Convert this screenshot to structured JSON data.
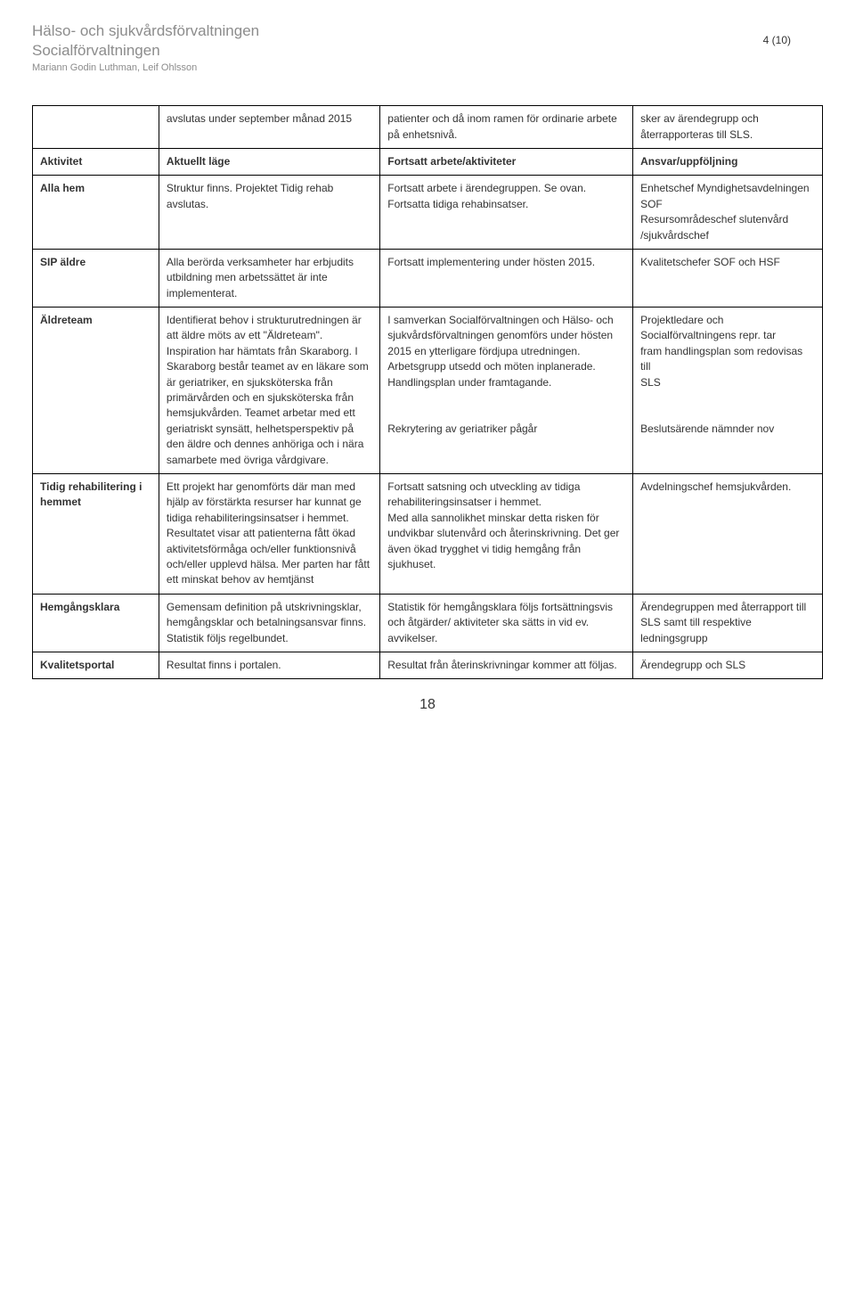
{
  "header": {
    "org1": "Hälso- och sjukvårdsförvaltningen",
    "org2": "Socialförvaltningen",
    "authors": "Mariann Godin Luthman, Leif Ohlsson",
    "page_indicator": "4 (10)"
  },
  "table": {
    "pre_head_row": {
      "c2": "avslutas under september månad 2015",
      "c3": "patienter och då inom ramen för ordinarie arbete på enhetsnivå.",
      "c4": "sker av ärendegrupp och återrapporteras till SLS."
    },
    "head": {
      "c1": "Aktivitet",
      "c2": "Aktuellt läge",
      "c3": "Fortsatt arbete/aktiviteter",
      "c4": "Ansvar/uppföljning"
    },
    "rows": [
      {
        "c1": "Alla hem",
        "c2": "Struktur finns. Projektet Tidig rehab avslutas.",
        "c3": "Fortsatt arbete i ärendegruppen. Se ovan. Fortsatta tidiga rehabinsatser.",
        "c4": "Enhetschef Myndighetsavdelningen SOF\nResursområdeschef slutenvård /sjukvårdschef"
      },
      {
        "c1": "SIP äldre",
        "c2": "Alla berörda verksamheter har erbjudits utbildning  men arbetssättet är inte implementerat.",
        "c3": "Fortsatt implementering under hösten 2015.",
        "c4": "Kvalitetschefer SOF och HSF"
      },
      {
        "c1": "Äldreteam",
        "c2": "Identifierat behov i strukturutredningen är att äldre möts av ett \"Äldreteam\". Inspiration har hämtats från Skaraborg. I Skaraborg består teamet av en läkare som är geriatriker, en sjuksköterska från primärvården och en sjuksköterska från hemsjukvården. Teamet arbetar med ett geriatriskt synsätt, helhetsperspektiv på den äldre och dennes anhöriga och i nära samarbete med övriga vårdgivare.",
        "c3": "I samverkan Socialförvaltningen och Hälso- och sjukvårdsförvaltningen genomförs under hösten 2015 en ytterligare fördjupa utredningen. Arbetsgrupp utsedd och möten inplanerade. Handlingsplan under framtagande.\n\nRekrytering av geriatriker pågår",
        "c4": "Projektledare och Socialförvaltningens repr. tar\nfram handlingsplan som redovisas till\nSLS\n\nBeslutsärende nämnder nov"
      },
      {
        "c1": "Tidig rehabilitering i hemmet",
        "c2": "Ett projekt har genomförts där man med hjälp av förstärkta resurser har kunnat ge tidiga rehabiliteringsinsatser i hemmet. Resultatet visar att patienterna fått ökad aktivitetsförmåga och/eller funktionsnivå och/eller upplevd hälsa. Mer parten har fått ett minskat behov av hemtjänst",
        "c3": "Fortsatt satsning och utveckling av tidiga rehabiliteringsinsatser i hemmet.\nMed alla sannolikhet minskar detta risken för undvikbar slutenvård och återinskrivning. Det ger även ökad trygghet vi tidig hemgång från sjukhuset.",
        "c4": "Avdelningschef hemsjukvården."
      },
      {
        "c1": "Hemgångsklara",
        "c2": "Gemensam definition på utskrivningsklar, hemgångsklar och betalningsansvar finns. Statistik följs regelbundet.",
        "c3": "Statistik för hemgångsklara följs fortsättningsvis och åtgärder/ aktiviteter ska sätts in vid ev. avvikelser.",
        "c4": "Ärendegruppen med återrapport till SLS samt till respektive ledningsgrupp"
      },
      {
        "c1": "Kvalitetsportal",
        "c2": "Resultat finns i portalen.",
        "c3": "Resultat från återinskrivningar kommer att följas.",
        "c4": "Ärendegrupp och SLS"
      }
    ]
  },
  "footer": {
    "page_number": "18"
  }
}
